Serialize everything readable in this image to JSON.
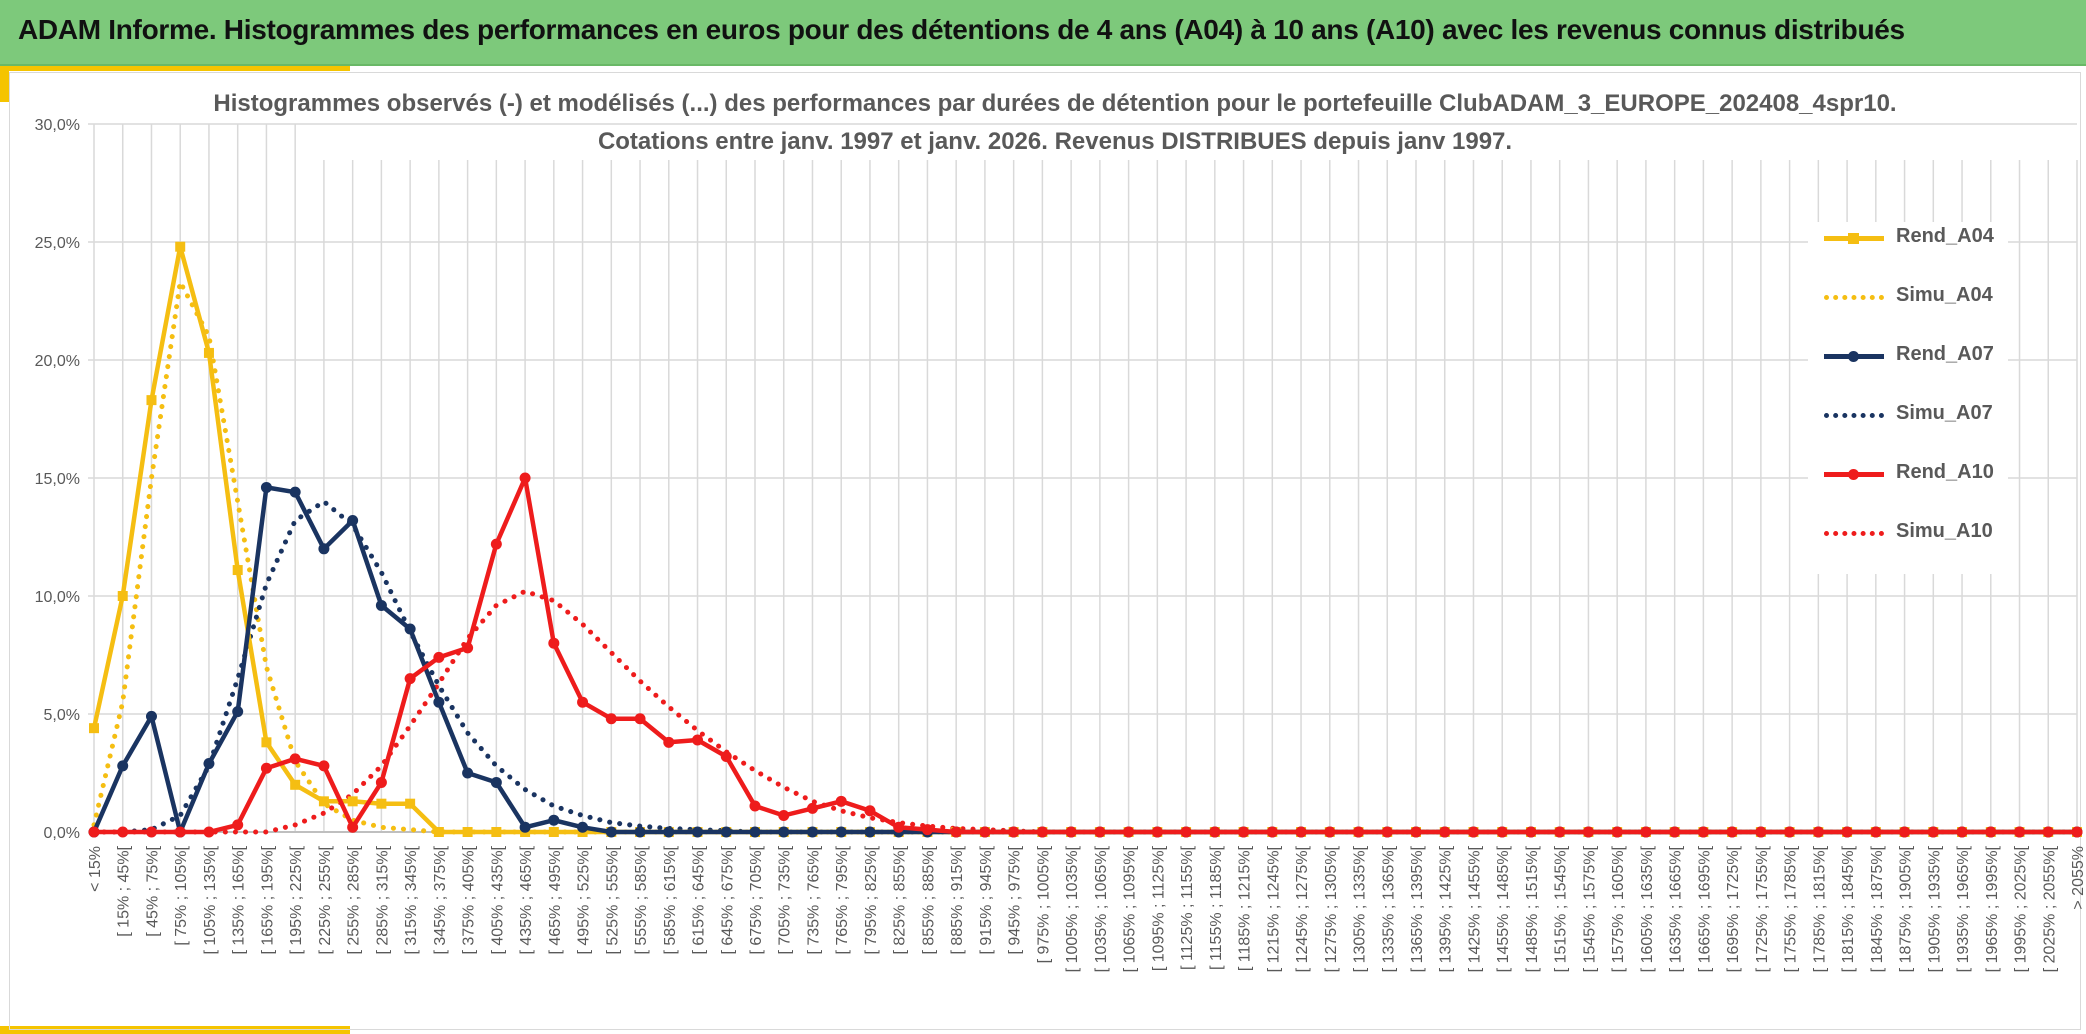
{
  "header": {
    "title": "ADAM Informe. Histogrammes des performances en euros pour des détentions de 4 ans (A04) à 10 ans (A10) avec les revenus connus distribués"
  },
  "chart_data": {
    "type": "line",
    "title_line1": "Histogrammes observés (-) et modélisés (...) des performances par durées de détention pour le portefeuille ClubADAM_3_EUROPE_202408_4spr10.",
    "title_line2": "Cotations entre janv. 1997 et janv. 2026. Revenus DISTRIBUES depuis janv 1997.",
    "ylim": [
      0,
      30
    ],
    "yticks": [
      "0,0%",
      "5,0%",
      "10,0%",
      "15,0%",
      "20,0%",
      "25,0%",
      "30,0%"
    ],
    "grid": true,
    "legend_position": "right",
    "categories": [
      "< 15%",
      "[ 15% ; 45%[",
      "[ 45% ; 75%[",
      "[ 75% ; 105%[",
      "[ 105% ; 135%[",
      "[ 135% ; 165%[",
      "[ 165% ; 195%[",
      "[ 195% ; 225%[",
      "[ 225% ; 255%[",
      "[ 255% ; 285%[",
      "[ 285% ; 315%[",
      "[ 315% ; 345%[",
      "[ 345% ; 375%[",
      "[ 375% ; 405%[",
      "[ 405% ; 435%[",
      "[ 435% ; 465%[",
      "[ 465% ; 495%[",
      "[ 495% ; 525%[",
      "[ 525% ; 555%[",
      "[ 555% ; 585%[",
      "[ 585% ; 615%[",
      "[ 615% ; 645%[",
      "[ 645% ; 675%[",
      "[ 675% ; 705%[",
      "[ 705% ; 735%[",
      "[ 735% ; 765%[",
      "[ 765% ; 795%[",
      "[ 795% ; 825%[",
      "[ 825% ; 855%[",
      "[ 855% ; 885%[",
      "[ 885% ; 915%[",
      "[ 915% ; 945%[",
      "[ 945% ; 975%[",
      "[ 975% ; 1005%[",
      "[ 1005% ; 1035%[",
      "[ 1035% ; 1065%[",
      "[ 1065% ; 1095%[",
      "[ 1095% ; 1125%[",
      "[ 1125% ; 1155%[",
      "[ 1155% ; 1185%[",
      "[ 1185% ; 1215%[",
      "[ 1215% ; 1245%[",
      "[ 1245% ; 1275%[",
      "[ 1275% ; 1305%[",
      "[ 1305% ; 1335%[",
      "[ 1335% ; 1365%[",
      "[ 1365% ; 1395%[",
      "[ 1395% ; 1425%[",
      "[ 1425% ; 1455%[",
      "[ 1455% ; 1485%[",
      "[ 1485% ; 1515%[",
      "[ 1515% ; 1545%[",
      "[ 1545% ; 1575%[",
      "[ 1575% ; 1605%[",
      "[ 1605% ; 1635%[",
      "[ 1635% ; 1665%[",
      "[ 1665% ; 1695%[",
      "[ 1695% ; 1725%[",
      "[ 1725% ; 1755%[",
      "[ 1755% ; 1785%[",
      "[ 1785% ; 1815%[",
      "[ 1815% ; 1845%[",
      "[ 1845% ; 1875%[",
      "[ 1875% ; 1905%[",
      "[ 1905% ; 1935%[",
      "[ 1935% ; 1965%[",
      "[ 1965% ; 1995%[",
      "[ 1995% ; 2025%[",
      "[ 2025% ; 2055%[",
      "> 2055%"
    ],
    "series": [
      {
        "name": "Rend_A04",
        "color": "#f5be12",
        "style": "solid",
        "marker": "square",
        "values": [
          4.4,
          10.0,
          18.3,
          24.8,
          20.3,
          11.1,
          3.8,
          2.0,
          1.3,
          1.3,
          1.2,
          1.2,
          0,
          0,
          0,
          0,
          0,
          0,
          0,
          0,
          0,
          0,
          0,
          0,
          0,
          0,
          0,
          0,
          0,
          0,
          0,
          0,
          0,
          0,
          0,
          0,
          0,
          0,
          0,
          0,
          0,
          0,
          0,
          0,
          0,
          0,
          0,
          0,
          0,
          0,
          0,
          0,
          0,
          0,
          0,
          0,
          0,
          0,
          0,
          0,
          0,
          0,
          0,
          0,
          0,
          0,
          0,
          0,
          0,
          0
        ]
      },
      {
        "name": "Simu_A04",
        "color": "#f5be12",
        "style": "dotted",
        "marker": "none",
        "values": [
          0.3,
          5.5,
          15.0,
          23.3,
          21.0,
          14.0,
          7.0,
          3.0,
          1.2,
          0.5,
          0.2,
          0.1,
          0,
          0,
          0,
          0,
          0,
          0,
          0,
          0,
          0,
          0,
          0,
          0,
          0,
          0,
          0,
          0,
          0,
          0,
          0,
          0,
          0,
          0,
          0,
          0,
          0,
          0,
          0,
          0,
          0,
          0,
          0,
          0,
          0,
          0,
          0,
          0,
          0,
          0,
          0,
          0,
          0,
          0,
          0,
          0,
          0,
          0,
          0,
          0,
          0,
          0,
          0,
          0,
          0,
          0,
          0,
          0,
          0,
          0
        ]
      },
      {
        "name": "Rend_A07",
        "color": "#1a3461",
        "style": "solid",
        "marker": "circle",
        "values": [
          0,
          2.8,
          4.9,
          0,
          2.9,
          5.1,
          14.6,
          14.4,
          12.0,
          13.2,
          9.6,
          8.6,
          5.5,
          2.5,
          2.1,
          0.2,
          0.5,
          0.2,
          0,
          0,
          0,
          0,
          0,
          0,
          0,
          0,
          0,
          0,
          0,
          0,
          0,
          0,
          0,
          0,
          0,
          0,
          0,
          0,
          0,
          0,
          0,
          0,
          0,
          0,
          0,
          0,
          0,
          0,
          0,
          0,
          0,
          0,
          0,
          0,
          0,
          0,
          0,
          0,
          0,
          0,
          0,
          0,
          0,
          0,
          0,
          0,
          0,
          0,
          0,
          0
        ]
      },
      {
        "name": "Simu_A07",
        "color": "#1a3461",
        "style": "dotted",
        "marker": "none",
        "values": [
          0,
          0,
          0.1,
          0.7,
          2.8,
          6.5,
          10.5,
          13.2,
          14.0,
          13.0,
          11.0,
          8.5,
          6.2,
          4.2,
          2.8,
          1.8,
          1.1,
          0.7,
          0.4,
          0.25,
          0.15,
          0.1,
          0.05,
          0,
          0,
          0,
          0,
          0,
          0,
          0,
          0,
          0,
          0,
          0,
          0,
          0,
          0,
          0,
          0,
          0,
          0,
          0,
          0,
          0,
          0,
          0,
          0,
          0,
          0,
          0,
          0,
          0,
          0,
          0,
          0,
          0,
          0,
          0,
          0,
          0,
          0,
          0,
          0,
          0,
          0,
          0,
          0,
          0,
          0,
          0
        ]
      },
      {
        "name": "Rend_A10",
        "color": "#ee1c1c",
        "style": "solid",
        "marker": "circle",
        "values": [
          0,
          0,
          0,
          0,
          0,
          0.3,
          2.7,
          3.1,
          2.8,
          0.2,
          2.1,
          6.5,
          7.4,
          7.8,
          12.2,
          15.0,
          8.0,
          5.5,
          4.8,
          4.8,
          3.8,
          3.9,
          3.2,
          1.1,
          0.7,
          1.0,
          1.3,
          0.9,
          0.2,
          0.1,
          0,
          0,
          0,
          0,
          0,
          0,
          0,
          0,
          0,
          0,
          0,
          0,
          0,
          0,
          0,
          0,
          0,
          0,
          0,
          0,
          0,
          0,
          0,
          0,
          0,
          0,
          0,
          0,
          0,
          0,
          0,
          0,
          0,
          0,
          0,
          0,
          0,
          0,
          0,
          0
        ]
      },
      {
        "name": "Simu_A10",
        "color": "#ee1c1c",
        "style": "dotted",
        "marker": "none",
        "values": [
          0,
          0,
          0,
          0,
          0,
          0,
          0,
          0.3,
          0.8,
          1.6,
          2.8,
          4.5,
          6.3,
          8.2,
          9.6,
          10.2,
          9.8,
          8.8,
          7.6,
          6.4,
          5.3,
          4.3,
          3.4,
          2.6,
          1.9,
          1.3,
          0.9,
          0.6,
          0.4,
          0.25,
          0.15,
          0.1,
          0.05,
          0,
          0,
          0,
          0,
          0,
          0,
          0,
          0,
          0,
          0,
          0,
          0,
          0,
          0,
          0,
          0,
          0,
          0,
          0,
          0,
          0,
          0,
          0,
          0,
          0,
          0,
          0,
          0,
          0,
          0,
          0,
          0,
          0,
          0,
          0,
          0,
          0
        ]
      }
    ]
  }
}
